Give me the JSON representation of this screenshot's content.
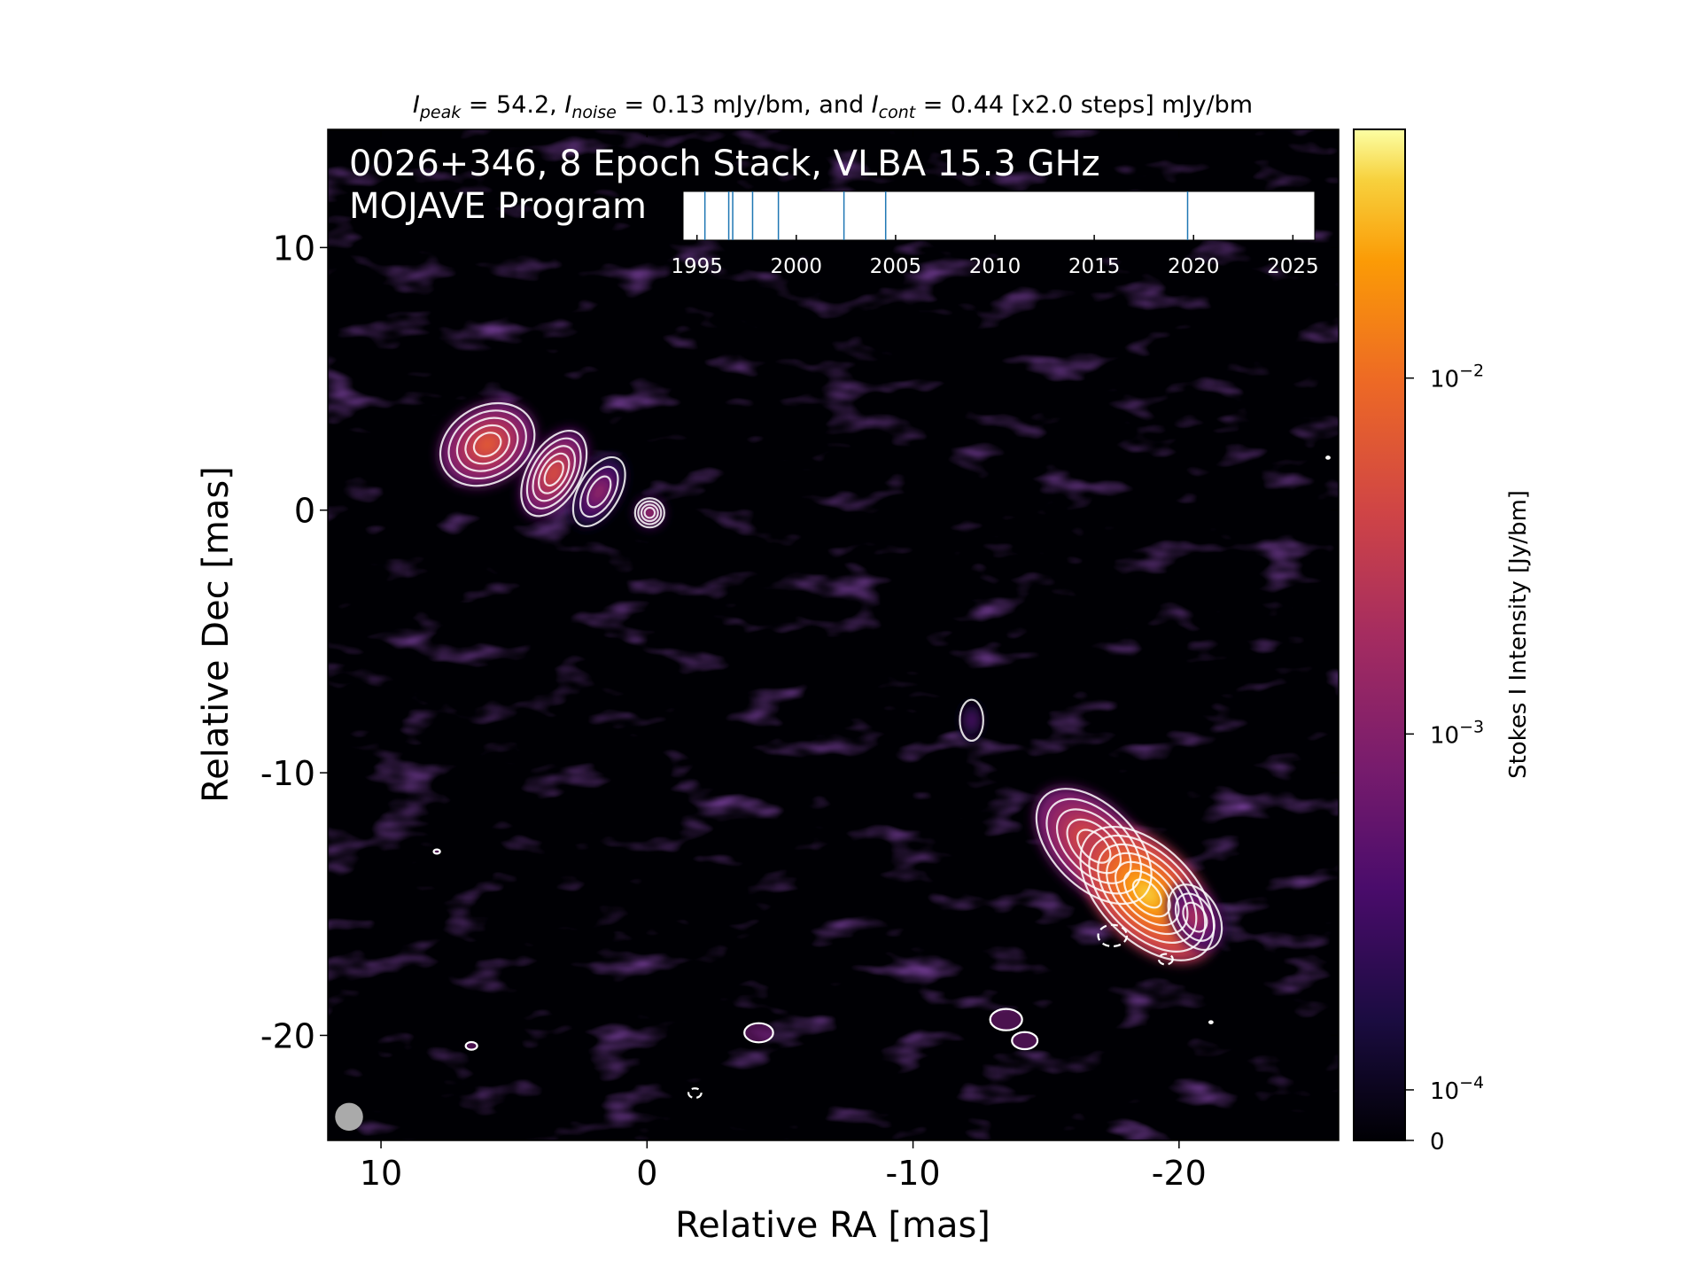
{
  "chart_data": {
    "type": "heatmap",
    "title": {
      "peak_symbol": "I",
      "peak_sub": "peak",
      "peak_value": " = 54.2, ",
      "noise_symbol": "I",
      "noise_sub": "noise",
      "noise_value": " = 0.13 mJy/bm, and ",
      "cont_symbol": "I",
      "cont_sub": "cont",
      "cont_value": " = 0.44 [x2.0 steps] mJy/bm"
    },
    "annotation_line1": "0026+346, 8 Epoch Stack, VLBA 15.3 GHz",
    "annotation_line2": "MOJAVE Program",
    "xlabel": "Relative RA [mas]",
    "ylabel": "Relative Dec [mas]",
    "xlim": [
      12,
      -26
    ],
    "ylim": [
      -24,
      14.5
    ],
    "x_ticks": [
      {
        "value": 10,
        "label": "10"
      },
      {
        "value": 0,
        "label": "0"
      },
      {
        "value": -10,
        "label": "-10"
      },
      {
        "value": -20,
        "label": "-20"
      }
    ],
    "y_ticks": [
      {
        "value": 10,
        "label": "10"
      },
      {
        "value": 0,
        "label": "0"
      },
      {
        "value": -10,
        "label": "-10"
      },
      {
        "value": -20,
        "label": "-20"
      }
    ],
    "colorbar": {
      "label": "Stokes I Intensity [Jy/bm]",
      "colormap": "inferno",
      "scale": "symlog",
      "ticks": [
        {
          "value": 0.01,
          "base": "10",
          "exp": "−2"
        },
        {
          "value": 0.001,
          "base": "10",
          "exp": "−3"
        },
        {
          "value": 0.0001,
          "base": "10",
          "exp": "−4"
        },
        {
          "value": 0,
          "base": "0",
          "exp": ""
        }
      ],
      "max": 0.0542
    },
    "epoch_timeline": {
      "xlim": [
        1994.3,
        2026.1
      ],
      "ticks": [
        {
          "value": 1995,
          "label": "1995"
        },
        {
          "value": 2000,
          "label": "2000"
        },
        {
          "value": 2005,
          "label": "2005"
        },
        {
          "value": 2010,
          "label": "2010"
        },
        {
          "value": 2015,
          "label": "2015"
        },
        {
          "value": 2020,
          "label": "2020"
        },
        {
          "value": 2025,
          "label": "2025"
        }
      ],
      "epochs": [
        1995.4,
        1996.6,
        1996.8,
        1997.8,
        1999.1,
        2002.4,
        2004.5,
        2019.7
      ],
      "line_color": "#1f77b4"
    },
    "components": [
      {
        "ra": -0.1,
        "dec": -0.1,
        "peak": 0.004,
        "major": 0.5,
        "minor": 0.5,
        "pa": 0,
        "levels": 4
      },
      {
        "ra": 6.0,
        "dec": 2.5,
        "peak": 0.011,
        "major": 1.7,
        "minor": 1.3,
        "pa": 30,
        "levels": 5
      },
      {
        "ra": 3.5,
        "dec": 1.4,
        "peak": 0.009,
        "major": 1.6,
        "minor": 0.9,
        "pa": 60,
        "levels": 5
      },
      {
        "ra": 1.8,
        "dec": 0.7,
        "peak": 0.0025,
        "major": 1.3,
        "minor": 0.7,
        "pa": 60,
        "levels": 3
      },
      {
        "ra": -12.2,
        "dec": -8.0,
        "peak": 0.0009,
        "major": 0.7,
        "minor": 0.4,
        "pa": 90,
        "levels": 1
      },
      {
        "ra": -16.8,
        "dec": -12.8,
        "peak": 0.012,
        "major": 2.4,
        "minor": 1.4,
        "pa": 135,
        "levels": 5
      },
      {
        "ra": -18.8,
        "dec": -14.6,
        "peak": 0.05,
        "major": 2.8,
        "minor": 1.6,
        "pa": 135,
        "levels": 7
      },
      {
        "ra": -20.6,
        "dec": -15.5,
        "peak": 0.004,
        "major": 1.2,
        "minor": 0.8,
        "pa": 120,
        "levels": 3
      }
    ],
    "small_contours": [
      {
        "ra": 7.9,
        "dec": -13.0,
        "r": 0.1
      },
      {
        "ra": 6.6,
        "dec": -20.4,
        "r": 0.18
      },
      {
        "ra": -4.2,
        "dec": -19.9,
        "r": 0.45
      },
      {
        "ra": -13.5,
        "dec": -19.4,
        "r": 0.5
      },
      {
        "ra": -14.2,
        "dec": -20.2,
        "r": 0.4
      },
      {
        "ra": -25.6,
        "dec": 2.0,
        "r": 0.05
      },
      {
        "ra": -21.2,
        "dec": -19.5,
        "r": 0.05
      }
    ],
    "negative_contours": [
      {
        "ra": -17.5,
        "dec": -16.2,
        "r": 0.45
      },
      {
        "ra": -19.5,
        "dec": -17.1,
        "r": 0.22
      },
      {
        "ra": -1.8,
        "dec": -22.2,
        "r": 0.2
      }
    ],
    "beam": {
      "ra": 11.2,
      "dec": -23.1,
      "size": 0.75,
      "color": "#aaaaaa"
    }
  }
}
